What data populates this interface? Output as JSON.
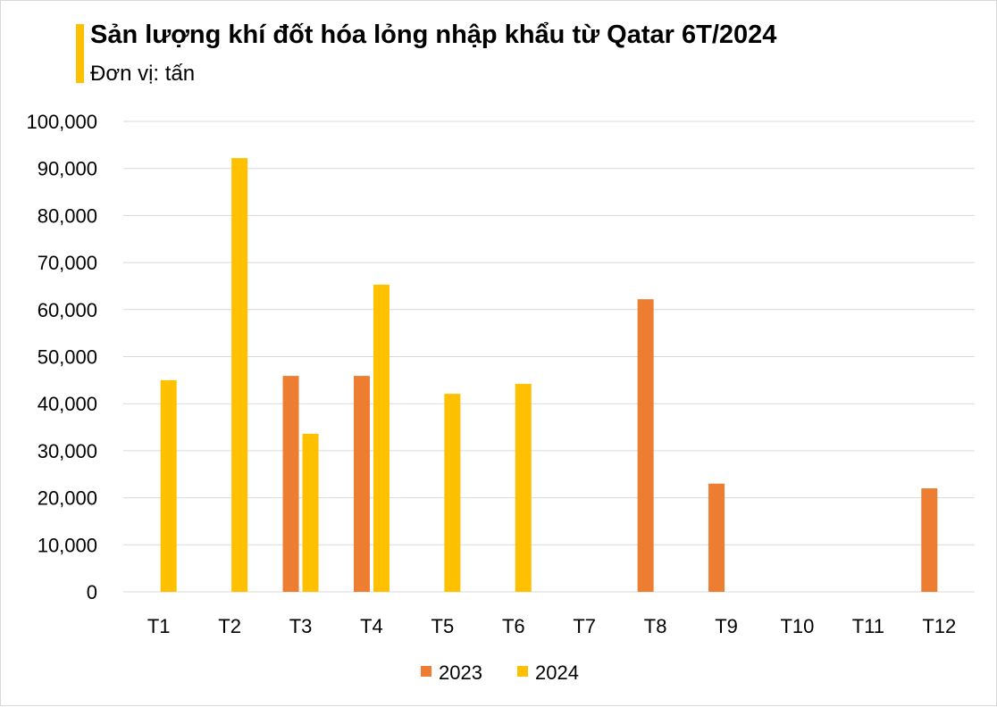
{
  "chart_data": {
    "type": "bar",
    "title": "Sản lượng khí đốt hóa lỏng nhập khẩu từ Qatar 6T/2024",
    "subtitle": "Đơn vị: tấn",
    "categories": [
      "T1",
      "T2",
      "T3",
      "T4",
      "T5",
      "T6",
      "T7",
      "T8",
      "T9",
      "T10",
      "T11",
      "T12"
    ],
    "series": [
      {
        "name": "2023",
        "color": "#ED7D31",
        "values": [
          0,
          0,
          45900,
          45900,
          0,
          0,
          0,
          62200,
          23000,
          0,
          0,
          22000
        ]
      },
      {
        "name": "2024",
        "color": "#FFC000",
        "values": [
          45000,
          92200,
          33600,
          65300,
          42100,
          44200,
          null,
          null,
          null,
          null,
          null,
          null
        ]
      }
    ],
    "yticks": [
      "0",
      "10,000",
      "20,000",
      "30,000",
      "40,000",
      "50,000",
      "60,000",
      "70,000",
      "80,000",
      "90,000",
      "100,000"
    ],
    "ylim": [
      0,
      100000
    ],
    "grid": true,
    "legend": "bottom"
  }
}
